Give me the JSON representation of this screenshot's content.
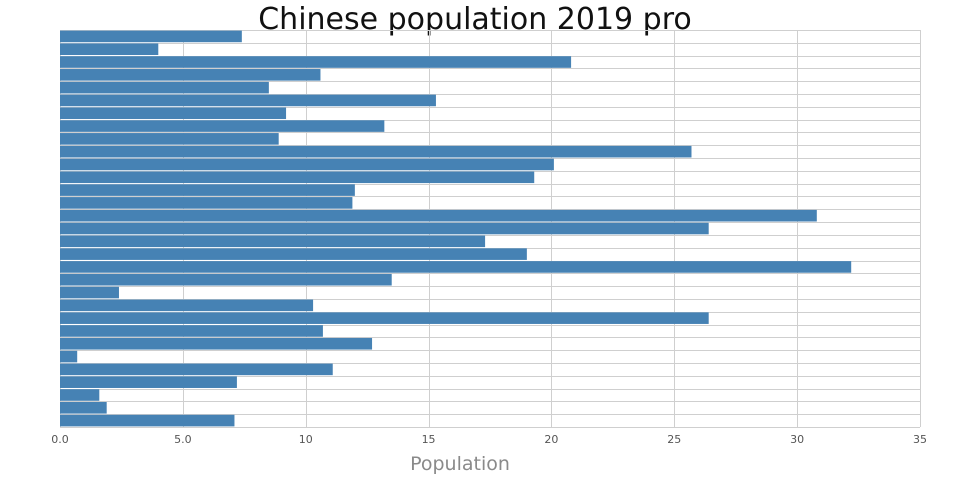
{
  "chart_data": {
    "type": "bar",
    "orientation": "horizontal",
    "title": "Chinese population 2019 pro",
    "xlabel": "Population",
    "ylabel": "",
    "xlim": [
      0,
      35
    ],
    "xticks": [
      0,
      5,
      10,
      15,
      20,
      25,
      30,
      35
    ],
    "xtick_labels": [
      "0.0",
      "5.0",
      "10",
      "15",
      "20",
      "25",
      "30",
      "35"
    ],
    "grid": true,
    "bar_color": "#4682b4",
    "values": [
      7.1,
      1.9,
      1.6,
      7.2,
      11.1,
      0.7,
      12.7,
      10.7,
      26.4,
      10.3,
      2.4,
      13.5,
      32.2,
      19.0,
      17.3,
      26.4,
      30.8,
      11.9,
      12.0,
      19.3,
      20.1,
      25.7,
      8.9,
      13.2,
      9.2,
      15.3,
      8.5,
      10.6,
      20.8,
      4.0,
      7.4
    ]
  }
}
